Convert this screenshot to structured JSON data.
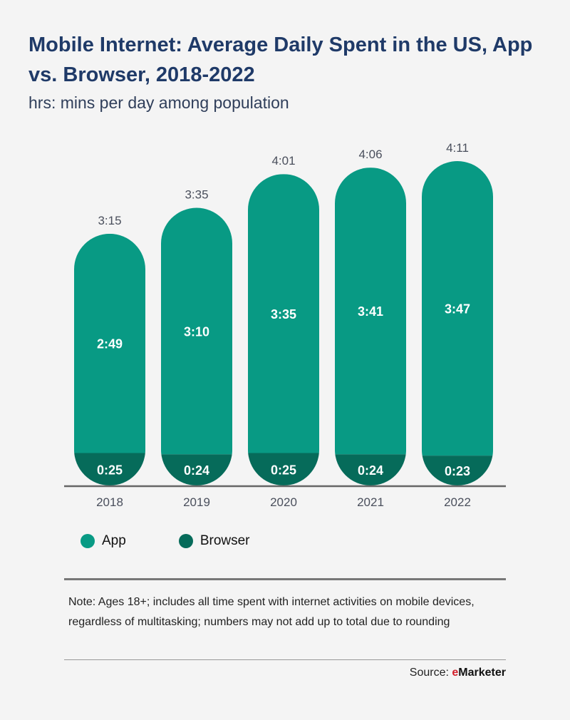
{
  "header": {
    "title": "Mobile Internet: Average Daily Spent in the US, App vs. Browser, 2018-2022",
    "subtitle": "hrs: mins per day among population"
  },
  "chart_data": {
    "type": "bar",
    "stacked": true,
    "categories": [
      "2018",
      "2019",
      "2020",
      "2021",
      "2022"
    ],
    "series": [
      {
        "name": "App",
        "values": [
          169,
          190,
          215,
          221,
          227
        ],
        "labels": [
          "2:49",
          "3:10",
          "3:35",
          "3:41",
          "3:47"
        ],
        "color": "#089a84"
      },
      {
        "name": "Browser",
        "values": [
          25,
          24,
          25,
          24,
          23
        ],
        "labels": [
          "0:25",
          "0:24",
          "0:25",
          "0:24",
          "0:23"
        ],
        "color": "#066b5a"
      }
    ],
    "totals": [
      195,
      215,
      241,
      246,
      251
    ],
    "total_labels": [
      "3:15",
      "3:35",
      "4:01",
      "4:06",
      "4:11"
    ],
    "units": "minutes"
  },
  "legend": {
    "items": [
      {
        "label": "App",
        "color": "#089a84"
      },
      {
        "label": "Browser",
        "color": "#066b5a"
      }
    ]
  },
  "footer": {
    "note": "Note: Ages 18+; includes all time spent with internet activities on mobile devices, regardless of multitasking; numbers may not add up to total due to rounding",
    "source_prefix": "Source: ",
    "source_brand_e": "e",
    "source_brand_rest": "Marketer"
  }
}
